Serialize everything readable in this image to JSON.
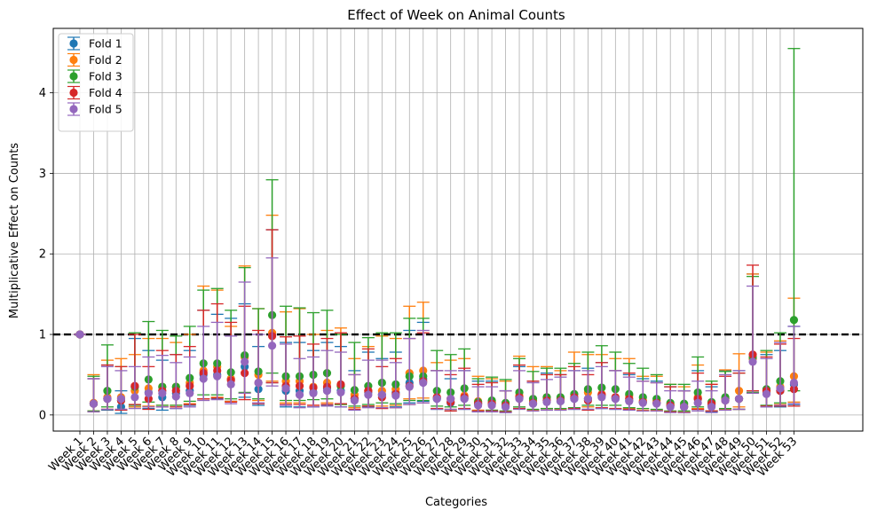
{
  "chart_data": {
    "type": "scatter",
    "title": "Effect of Week on Animal Counts",
    "xlabel": "Categories",
    "ylabel": "Multiplicative Effect on Counts",
    "ylim": [
      -0.2,
      4.8
    ],
    "yticks": [
      0,
      1,
      2,
      3,
      4
    ],
    "grid": true,
    "legend_position": "top-left",
    "reference_line": {
      "y": 1,
      "style": "dashed",
      "color": "#000000"
    },
    "categories": [
      "Week 1",
      "Week 2",
      "Week 3",
      "Week 4",
      "Week 5",
      "Week 6",
      "Week 7",
      "Week 8",
      "Week 9",
      "Week 10",
      "Week 11",
      "Week 12",
      "Week 13",
      "Week 14",
      "Week 15",
      "Week 16",
      "Week 17",
      "Week 18",
      "Week 19",
      "Week 20",
      "Week 21",
      "Week 22",
      "Week 23",
      "Week 24",
      "Week 25",
      "Week 26",
      "Week 27",
      "Week 28",
      "Week 29",
      "Week 30",
      "Week 31",
      "Week 32",
      "Week 33",
      "Week 34",
      "Week 35",
      "Week 36",
      "Week 37",
      "Week 38",
      "Week 39",
      "Week 40",
      "Week 41",
      "Week 42",
      "Week 43",
      "Week 44",
      "Week 45",
      "Week 46",
      "Week 47",
      "Week 48",
      "Week 49",
      "Week 50",
      "Week 51",
      "Week 52",
      "Week 53"
    ],
    "series": [
      {
        "name": "Fold 1",
        "color": "#1f77b4",
        "values": [
          1,
          0.14,
          0.2,
          0.1,
          0.35,
          0.28,
          0.22,
          0.27,
          0.3,
          0.5,
          0.5,
          0.45,
          0.6,
          0.32,
          1.0,
          0.3,
          0.3,
          0.28,
          0.33,
          0.3,
          0.2,
          0.28,
          0.25,
          0.28,
          0.4,
          0.45,
          0.2,
          0.15,
          0.2,
          0.14,
          0.14,
          0.1,
          0.22,
          0.14,
          0.18,
          0.17,
          0.2,
          0.2,
          0.24,
          0.2,
          0.18,
          0.16,
          0.15,
          0.12,
          0.1,
          0.2,
          0.12,
          0.2,
          0.2,
          0.7,
          0.28,
          0.3,
          0.38
        ],
        "lower": [
          1,
          0.04,
          0.06,
          0.02,
          0.1,
          0.08,
          0.06,
          0.08,
          0.12,
          0.2,
          0.2,
          0.17,
          0.22,
          0.12,
          0.4,
          0.1,
          0.1,
          0.1,
          0.12,
          0.1,
          0.06,
          0.1,
          0.09,
          0.1,
          0.15,
          0.17,
          0.07,
          0.05,
          0.07,
          0.04,
          0.04,
          0.03,
          0.08,
          0.05,
          0.06,
          0.06,
          0.07,
          0.07,
          0.08,
          0.07,
          0.06,
          0.05,
          0.05,
          0.04,
          0.03,
          0.07,
          0.04,
          0.07,
          0.07,
          0.28,
          0.1,
          0.1,
          0.13
        ],
        "upper": [
          1,
          0.45,
          0.62,
          0.3,
          0.95,
          0.8,
          0.68,
          0.75,
          0.8,
          1.3,
          1.25,
          1.2,
          1.38,
          0.85,
          2.3,
          0.9,
          0.9,
          0.8,
          0.9,
          0.85,
          0.55,
          0.78,
          0.7,
          0.78,
          1.05,
          1.15,
          0.55,
          0.45,
          0.55,
          0.42,
          0.42,
          0.3,
          0.6,
          0.42,
          0.52,
          0.5,
          0.55,
          0.58,
          0.65,
          0.55,
          0.5,
          0.45,
          0.42,
          0.35,
          0.3,
          0.55,
          0.35,
          0.55,
          0.55,
          1.75,
          0.75,
          0.8,
          1.1
        ]
      },
      {
        "name": "Fold 2",
        "color": "#ff7f0e",
        "values": [
          1,
          0.15,
          0.22,
          0.22,
          0.3,
          0.33,
          0.35,
          0.35,
          0.4,
          0.55,
          0.6,
          0.45,
          0.72,
          0.5,
          1.02,
          0.42,
          0.42,
          0.35,
          0.4,
          0.37,
          0.25,
          0.3,
          0.3,
          0.32,
          0.52,
          0.55,
          0.22,
          0.2,
          0.24,
          0.17,
          0.16,
          0.12,
          0.24,
          0.18,
          0.22,
          0.2,
          0.22,
          0.28,
          0.26,
          0.22,
          0.24,
          0.18,
          0.18,
          0.13,
          0.12,
          0.22,
          0.15,
          0.2,
          0.3,
          0.7,
          0.3,
          0.35,
          0.48
        ],
        "lower": [
          1,
          0.05,
          0.07,
          0.07,
          0.1,
          0.11,
          0.12,
          0.12,
          0.14,
          0.2,
          0.22,
          0.17,
          0.27,
          0.18,
          0.42,
          0.15,
          0.15,
          0.12,
          0.15,
          0.13,
          0.09,
          0.11,
          0.11,
          0.12,
          0.2,
          0.21,
          0.08,
          0.07,
          0.08,
          0.06,
          0.05,
          0.04,
          0.08,
          0.06,
          0.08,
          0.07,
          0.08,
          0.1,
          0.09,
          0.08,
          0.08,
          0.06,
          0.06,
          0.04,
          0.04,
          0.08,
          0.05,
          0.07,
          0.1,
          0.27,
          0.11,
          0.13,
          0.16
        ],
        "upper": [
          1,
          0.5,
          0.68,
          0.7,
          0.75,
          0.95,
          0.95,
          0.9,
          1.0,
          1.6,
          1.55,
          1.1,
          1.85,
          1.32,
          2.48,
          1.28,
          1.32,
          1.0,
          1.05,
          1.08,
          0.7,
          0.85,
          0.98,
          0.95,
          1.35,
          1.4,
          0.65,
          0.68,
          0.7,
          0.48,
          0.45,
          0.42,
          0.73,
          0.6,
          0.6,
          0.55,
          0.78,
          0.75,
          0.75,
          0.7,
          0.7,
          0.48,
          0.48,
          0.38,
          0.35,
          0.62,
          0.38,
          0.56,
          0.76,
          1.75,
          0.78,
          0.92,
          1.45
        ]
      },
      {
        "name": "Fold 3",
        "color": "#2ca02c",
        "values": [
          1,
          0.14,
          0.3,
          0.18,
          0.35,
          0.44,
          0.35,
          0.35,
          0.46,
          0.64,
          0.64,
          0.53,
          0.74,
          0.54,
          1.24,
          0.48,
          0.48,
          0.5,
          0.52,
          0.36,
          0.31,
          0.36,
          0.4,
          0.38,
          0.48,
          0.48,
          0.3,
          0.28,
          0.33,
          0.16,
          0.18,
          0.15,
          0.28,
          0.2,
          0.22,
          0.22,
          0.26,
          0.32,
          0.34,
          0.32,
          0.26,
          0.22,
          0.2,
          0.15,
          0.14,
          0.28,
          0.16,
          0.22,
          0.2,
          0.72,
          0.32,
          0.42,
          1.18
        ],
        "lower": [
          1,
          0.05,
          0.1,
          0.06,
          0.12,
          0.16,
          0.12,
          0.12,
          0.17,
          0.25,
          0.25,
          0.2,
          0.28,
          0.2,
          0.52,
          0.18,
          0.18,
          0.19,
          0.2,
          0.13,
          0.11,
          0.13,
          0.15,
          0.14,
          0.18,
          0.18,
          0.11,
          0.1,
          0.12,
          0.05,
          0.06,
          0.05,
          0.1,
          0.07,
          0.08,
          0.08,
          0.09,
          0.12,
          0.12,
          0.12,
          0.09,
          0.08,
          0.07,
          0.05,
          0.05,
          0.1,
          0.05,
          0.08,
          0.07,
          0.28,
          0.12,
          0.15,
          0.3
        ],
        "upper": [
          1,
          0.48,
          0.87,
          0.6,
          1.02,
          1.16,
          1.05,
          0.98,
          1.1,
          1.55,
          1.57,
          1.3,
          1.83,
          1.32,
          2.92,
          1.35,
          1.33,
          1.27,
          1.3,
          1.0,
          0.9,
          0.96,
          1.02,
          1.02,
          1.2,
          1.2,
          0.8,
          0.75,
          0.82,
          0.45,
          0.47,
          0.44,
          0.7,
          0.54,
          0.58,
          0.58,
          0.64,
          0.78,
          0.86,
          0.78,
          0.64,
          0.58,
          0.5,
          0.38,
          0.38,
          0.72,
          0.42,
          0.54,
          0.52,
          1.72,
          0.8,
          1.02,
          4.55
        ]
      },
      {
        "name": "Fold 4",
        "color": "#d62728",
        "values": [
          1,
          0.14,
          0.2,
          0.18,
          0.36,
          0.2,
          0.3,
          0.3,
          0.36,
          0.52,
          0.55,
          0.43,
          0.52,
          0.4,
          0.98,
          0.36,
          0.36,
          0.34,
          0.35,
          0.38,
          0.2,
          0.3,
          0.22,
          0.26,
          0.36,
          0.42,
          0.22,
          0.16,
          0.22,
          0.14,
          0.14,
          0.12,
          0.22,
          0.15,
          0.18,
          0.18,
          0.22,
          0.18,
          0.25,
          0.22,
          0.2,
          0.16,
          0.15,
          0.12,
          0.1,
          0.2,
          0.14,
          0.18,
          0.2,
          0.75,
          0.3,
          0.3,
          0.32
        ],
        "lower": [
          1,
          0.04,
          0.07,
          0.06,
          0.13,
          0.07,
          0.1,
          0.1,
          0.13,
          0.2,
          0.21,
          0.16,
          0.19,
          0.14,
          0.4,
          0.13,
          0.13,
          0.12,
          0.13,
          0.14,
          0.07,
          0.11,
          0.08,
          0.09,
          0.13,
          0.15,
          0.08,
          0.05,
          0.08,
          0.05,
          0.05,
          0.04,
          0.08,
          0.05,
          0.06,
          0.06,
          0.08,
          0.06,
          0.09,
          0.08,
          0.07,
          0.05,
          0.05,
          0.04,
          0.03,
          0.07,
          0.05,
          0.06,
          0.07,
          0.3,
          0.11,
          0.11,
          0.11
        ],
        "upper": [
          1,
          0.45,
          0.62,
          0.6,
          1.0,
          0.6,
          0.8,
          0.75,
          0.85,
          1.3,
          1.38,
          1.15,
          1.35,
          1.05,
          2.3,
          0.97,
          0.98,
          0.88,
          0.95,
          1.02,
          0.5,
          0.82,
          0.6,
          0.7,
          0.95,
          1.02,
          0.55,
          0.5,
          0.58,
          0.38,
          0.4,
          0.3,
          0.62,
          0.42,
          0.5,
          0.5,
          0.6,
          0.5,
          0.65,
          0.55,
          0.52,
          0.42,
          0.4,
          0.35,
          0.3,
          0.52,
          0.38,
          0.48,
          0.52,
          1.86,
          0.72,
          0.88,
          0.95
        ]
      },
      {
        "name": "Fold 5",
        "color": "#9467bd",
        "values": [
          1,
          0.14,
          0.2,
          0.2,
          0.22,
          0.27,
          0.27,
          0.23,
          0.27,
          0.45,
          0.48,
          0.38,
          0.66,
          0.4,
          0.86,
          0.33,
          0.25,
          0.27,
          0.3,
          0.28,
          0.18,
          0.25,
          0.25,
          0.24,
          0.35,
          0.4,
          0.2,
          0.2,
          0.2,
          0.12,
          0.12,
          0.1,
          0.2,
          0.14,
          0.16,
          0.17,
          0.2,
          0.2,
          0.22,
          0.2,
          0.17,
          0.15,
          0.14,
          0.1,
          0.1,
          0.15,
          0.1,
          0.18,
          0.2,
          0.66,
          0.26,
          0.33,
          0.4
        ],
        "lower": [
          1,
          0.04,
          0.07,
          0.07,
          0.08,
          0.1,
          0.1,
          0.08,
          0.1,
          0.18,
          0.19,
          0.14,
          0.27,
          0.15,
          0.36,
          0.12,
          0.09,
          0.1,
          0.11,
          0.1,
          0.06,
          0.09,
          0.09,
          0.09,
          0.13,
          0.15,
          0.07,
          0.07,
          0.07,
          0.04,
          0.04,
          0.03,
          0.07,
          0.05,
          0.06,
          0.06,
          0.07,
          0.07,
          0.08,
          0.07,
          0.06,
          0.05,
          0.05,
          0.03,
          0.03,
          0.05,
          0.03,
          0.06,
          0.07,
          0.27,
          0.1,
          0.12,
          0.14
        ],
        "upper": [
          1,
          0.45,
          0.6,
          0.55,
          0.6,
          0.72,
          0.74,
          0.65,
          0.72,
          1.1,
          1.15,
          0.98,
          1.65,
          1.0,
          1.95,
          0.88,
          0.7,
          0.72,
          0.8,
          0.78,
          0.5,
          0.68,
          0.68,
          0.65,
          0.95,
          1.05,
          0.55,
          0.55,
          0.55,
          0.35,
          0.35,
          0.3,
          0.55,
          0.4,
          0.44,
          0.47,
          0.55,
          0.55,
          0.6,
          0.55,
          0.47,
          0.42,
          0.4,
          0.3,
          0.3,
          0.42,
          0.3,
          0.5,
          0.55,
          1.6,
          0.7,
          0.9,
          1.1
        ]
      }
    ]
  }
}
